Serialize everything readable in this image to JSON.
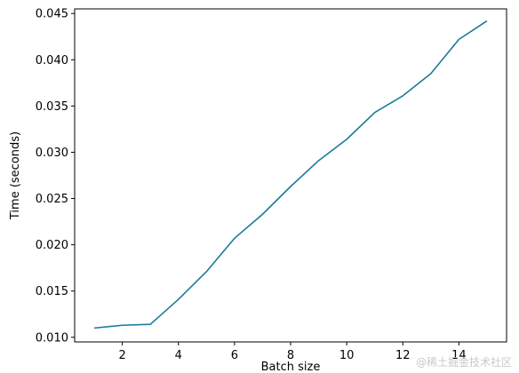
{
  "chart_data": {
    "type": "line",
    "title": "",
    "xlabel": "Batch size",
    "ylabel": "Time (seconds)",
    "xlim": [
      0.3,
      15.7
    ],
    "ylim": [
      0.0095,
      0.0455
    ],
    "xticks": [
      2,
      4,
      6,
      8,
      10,
      12,
      14
    ],
    "yticks": [
      0.01,
      0.015,
      0.02,
      0.025,
      0.03,
      0.035,
      0.04,
      0.045
    ],
    "ytick_labels": [
      "0.010",
      "0.015",
      "0.020",
      "0.025",
      "0.030",
      "0.035",
      "0.040",
      "0.045"
    ],
    "grid": false,
    "series": [
      {
        "color": "#1b7a9a",
        "x": [
          1,
          2,
          3,
          4,
          5,
          6,
          7,
          8,
          9,
          10,
          11,
          12,
          13,
          14,
          15
        ],
        "y": [
          0.011,
          0.0113,
          0.0114,
          0.0141,
          0.0171,
          0.0207,
          0.0233,
          0.0263,
          0.0291,
          0.0314,
          0.0343,
          0.0361,
          0.0385,
          0.0422,
          0.0442
        ]
      }
    ]
  },
  "watermark": "@稀土掘金技术社区"
}
